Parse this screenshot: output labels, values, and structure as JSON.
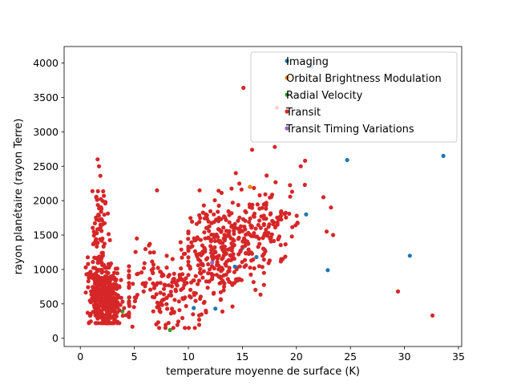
{
  "chart_data": {
    "type": "scatter",
    "title": "",
    "xlabel": "temperature moyenne de surface (K)",
    "ylabel": "rayon planétaire (rayon Terre)",
    "xlim": [
      -1.5,
      35.3
    ],
    "ylim": [
      -120,
      4240
    ],
    "xticks": [
      0,
      5,
      10,
      15,
      20,
      25,
      30,
      35
    ],
    "yticks": [
      0,
      500,
      1000,
      1500,
      2000,
      2500,
      3000,
      3500,
      4000
    ],
    "grid": false,
    "legend_position": "top-right",
    "series": [
      {
        "name": "Imaging",
        "color": "#1f77b4",
        "points": [
          [
            21.4,
            3950
          ],
          [
            24.7,
            2590
          ],
          [
            33.6,
            2650
          ],
          [
            20.9,
            1800
          ],
          [
            16.3,
            1180
          ],
          [
            14.3,
            1040
          ],
          [
            14.5,
            1030
          ],
          [
            10.5,
            440
          ],
          [
            12.5,
            430
          ],
          [
            22.9,
            990
          ],
          [
            30.5,
            1200
          ],
          [
            15.0,
            1310
          ]
        ]
      },
      {
        "name": "Orbital Brightness Modulation",
        "color": "#ff7f0e",
        "points": [
          [
            15.7,
            2200
          ]
        ]
      },
      {
        "name": "Radial Velocity",
        "color": "#2ca02c",
        "points": [
          [
            8.3,
            120
          ],
          [
            4.5,
            590
          ],
          [
            3.9,
            390
          ]
        ]
      },
      {
        "name": "Transit",
        "color": "#d62728",
        "points": "generated"
      },
      {
        "name": "Transit Timing Variations",
        "color": "#9467bd",
        "points": [
          [
            12.2,
            1100
          ]
        ]
      }
    ],
    "transit_outliers": [
      [
        15.1,
        3640
      ],
      [
        18.2,
        3350
      ],
      [
        29.4,
        680
      ],
      [
        32.6,
        330
      ],
      [
        20.8,
        2580
      ],
      [
        20.4,
        2500
      ],
      [
        15.9,
        2740
      ],
      [
        18.0,
        2780
      ],
      [
        1.6,
        2600
      ],
      [
        7.1,
        2150
      ],
      [
        19.6,
        2130
      ],
      [
        22.5,
        2050
      ],
      [
        23.2,
        1900
      ],
      [
        22.8,
        1550
      ],
      [
        23.4,
        1500
      ]
    ]
  }
}
